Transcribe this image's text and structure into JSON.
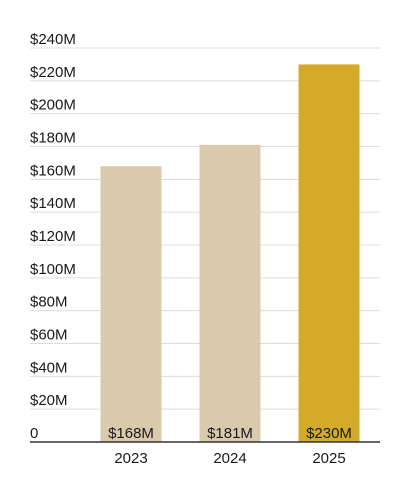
{
  "chart_data": {
    "type": "bar",
    "title": "",
    "xlabel": "",
    "ylabel": "",
    "categories": [
      "2023",
      "2024",
      "2025"
    ],
    "values": [
      168,
      181,
      230
    ],
    "data_labels": [
      "$168M",
      "$181M",
      "$230M"
    ],
    "ylim": [
      0,
      240
    ],
    "y_ticks": [
      0,
      20,
      40,
      60,
      80,
      100,
      120,
      140,
      160,
      180,
      200,
      220,
      240
    ],
    "y_tick_labels": [
      "0",
      "$20M",
      "$40M",
      "$60M",
      "$80M",
      "$100M",
      "$120M",
      "$140M",
      "$160M",
      "$180M",
      "$200M",
      "$220M",
      "$240M"
    ],
    "grid": true,
    "legend": "none",
    "colors": {
      "bar_default": "#d9c9ad",
      "bar_highlight": "#d4aa2b",
      "grid": "#dcdcdc",
      "axis": "#333333",
      "text": "#1a1a1a"
    },
    "highlight_index": 2
  }
}
